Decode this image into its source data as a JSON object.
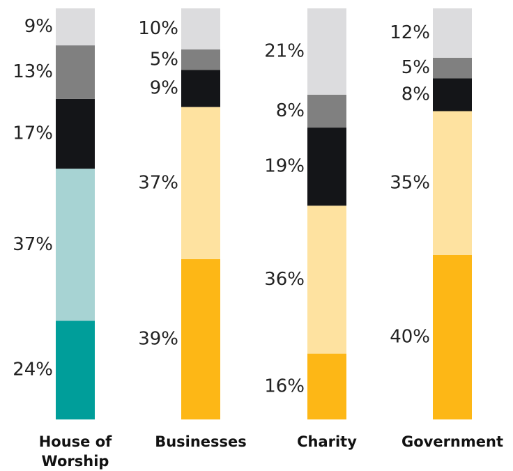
{
  "chart_data": {
    "type": "stacked-bar",
    "categories": [
      "House of Worship",
      "Businesses",
      "Charity",
      "Government"
    ],
    "ylim": [
      0,
      100
    ],
    "series": [
      {
        "colors": [
          "#009e9a",
          "#fdb716",
          "#fdb716",
          "#fdb716"
        ],
        "values": [
          24,
          39,
          16,
          40
        ],
        "value_labels": [
          "24%",
          "39%",
          "16%",
          "40%"
        ]
      },
      {
        "colors": [
          "#a7d3d3",
          "#fee2a0",
          "#fee2a0",
          "#fee2a0"
        ],
        "values": [
          37,
          37,
          36,
          35
        ],
        "value_labels": [
          "37%",
          "37%",
          "36%",
          "35%"
        ]
      },
      {
        "colors": [
          "#141518",
          "#141518",
          "#141518",
          "#141518"
        ],
        "values": [
          17,
          9,
          19,
          8
        ],
        "value_labels": [
          "17%",
          "9%",
          "19%",
          "8%"
        ]
      },
      {
        "colors": [
          "#808080",
          "#808080",
          "#808080",
          "#808080"
        ],
        "values": [
          13,
          5,
          8,
          5
        ],
        "value_labels": [
          "13%",
          "5%",
          "8%",
          "5%"
        ]
      },
      {
        "colors": [
          "#dcdcde",
          "#dcdcde",
          "#dcdcde",
          "#dcdcde"
        ],
        "values": [
          9,
          10,
          21,
          12
        ],
        "value_labels": [
          "9%",
          "10%",
          "21%",
          "12%"
        ]
      }
    ]
  }
}
